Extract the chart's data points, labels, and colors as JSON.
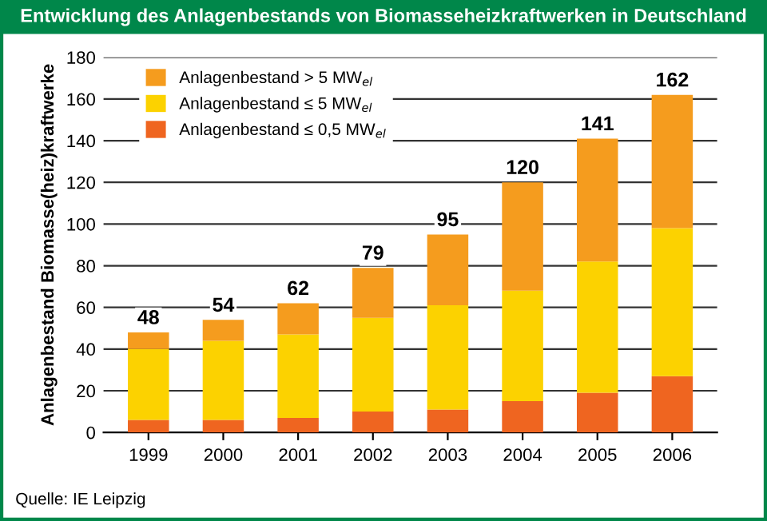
{
  "chart_data": {
    "type": "bar",
    "title": "Entwicklung des Anlagenbestands von Biomasseheizkraftwerken in Deutschland",
    "ylabel": "Anlagenbestand Biomasse(heiz)kraftwerke",
    "categories": [
      "1999",
      "2000",
      "2001",
      "2002",
      "2003",
      "2004",
      "2005",
      "2006"
    ],
    "stacked": true,
    "series": [
      {
        "name": "Anlagenbestand ≤ 0,5 MW$_{el}$",
        "color": "#ef6520",
        "values": [
          6,
          6,
          7,
          10,
          11,
          15,
          19,
          27
        ]
      },
      {
        "name": "Anlagenbestand ≤ 5 MW$_{el}$",
        "color": "#fcd200",
        "values": [
          34,
          38,
          40,
          45,
          50,
          53,
          63,
          71
        ]
      },
      {
        "name": "Anlagenbestand > 5 MW$_{el}$",
        "color": "#f59c1e",
        "values": [
          8,
          10,
          15,
          24,
          34,
          52,
          59,
          64
        ]
      }
    ],
    "totals": [
      "48",
      "54",
      "62",
      "79",
      "95",
      "120",
      "141",
      "162"
    ],
    "ylim": [
      0,
      180
    ],
    "yticks": [
      0,
      20,
      40,
      60,
      80,
      100,
      120,
      140,
      160,
      180
    ],
    "grid": "y",
    "legend": "top left",
    "annotations": [
      "Quelle: IE Leipzig"
    ]
  }
}
